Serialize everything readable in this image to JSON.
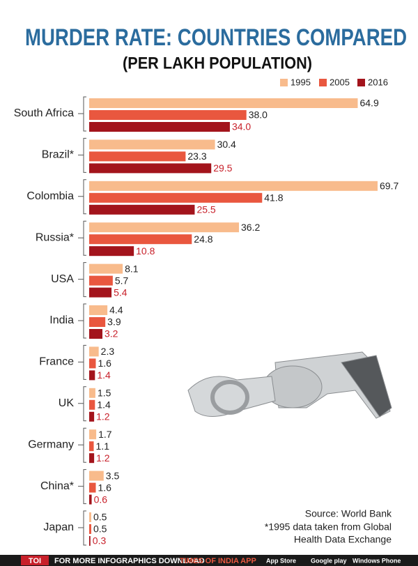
{
  "chart_data": {
    "type": "bar",
    "orientation": "horizontal",
    "title": "MURDER RATE: COUNTRIES COMPARED",
    "subtitle": "(PER LAKH POPULATION)",
    "categories": [
      "South Africa",
      "Brazil*",
      "Colombia",
      "Russia*",
      "USA",
      "India",
      "France",
      "UK",
      "Germany",
      "China*",
      "Japan"
    ],
    "series": [
      {
        "name": "1995",
        "color": "#f8bb8c",
        "values": [
          64.9,
          30.4,
          69.7,
          36.2,
          8.1,
          4.4,
          2.3,
          1.5,
          1.7,
          3.5,
          0.5
        ],
        "value_labels": [
          "64.9",
          "30.4",
          "69.7",
          "36.2",
          "8.1",
          "4.4",
          "2.3",
          "1.5",
          "1.7",
          "3.5",
          "0.5"
        ]
      },
      {
        "name": "2005",
        "color": "#e9573f",
        "values": [
          38.0,
          23.3,
          41.8,
          24.8,
          5.7,
          3.9,
          1.6,
          1.4,
          1.1,
          1.6,
          0.5
        ],
        "value_labels": [
          "38.0",
          "23.3",
          "41.8",
          "24.8",
          "5.7",
          "3.9",
          "1.6",
          "1.4",
          "1.1",
          "1.6",
          "0.5"
        ]
      },
      {
        "name": "2016",
        "color": "#a3141c",
        "values": [
          34.0,
          29.5,
          25.5,
          10.8,
          5.4,
          3.2,
          1.4,
          1.2,
          1.2,
          0.6,
          0.3
        ],
        "value_labels": [
          "34.0",
          "29.5",
          "25.5",
          "10.8",
          "5.4",
          "3.2",
          "1.4",
          "1.2",
          "1.2",
          "0.6",
          "0.3"
        ]
      }
    ],
    "source": "Source: World Bank",
    "notes": [
      "*1995 data taken from Global",
      "Health Data Exchange"
    ],
    "footer": {
      "brand": "TOI",
      "text": "FOR MORE  INFOGRAPHICS DOWNLOAD",
      "app": "TIMES OF INDIA  APP",
      "stores": [
        "App Store",
        "Google play",
        "Windows Phone"
      ]
    }
  }
}
